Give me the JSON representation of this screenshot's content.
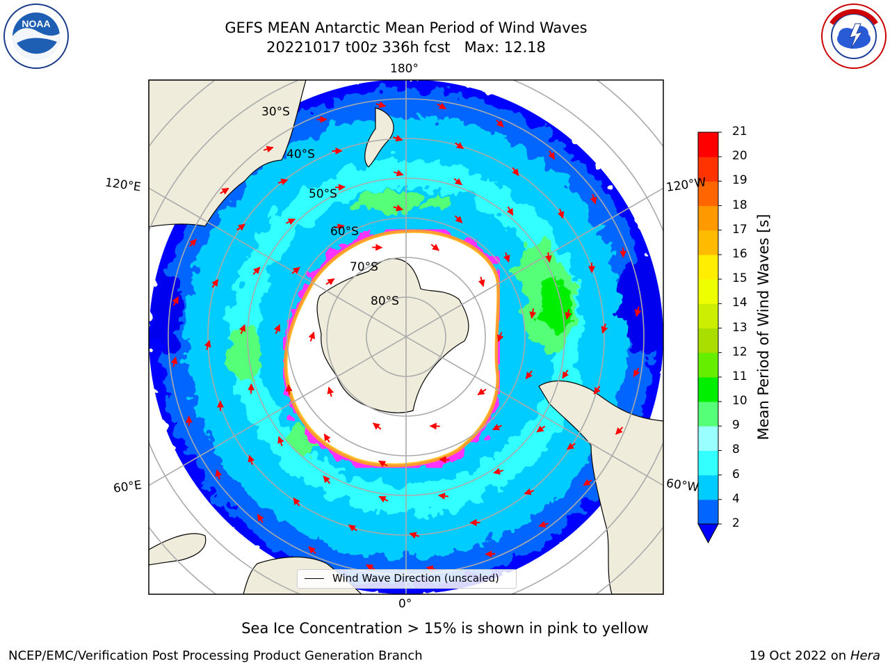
{
  "header": {
    "title_line1": "GEFS MEAN Antarctic Mean Period of Wind Waves",
    "title_line2": "20221017 t00z 336h fcst   Max: 12.18"
  },
  "map": {
    "projection": "south-polar-stereographic",
    "longitude_labels": {
      "top": "180°",
      "bottom": "0°",
      "upper_left": "120°E",
      "upper_right": "120°W",
      "lower_left": "60°E",
      "lower_right": "60°W"
    },
    "latitude_labels": [
      "30°S",
      "40°S",
      "50°S",
      "60°S",
      "70°S",
      "80°S"
    ],
    "legend_label": "Wind Wave Direction (unscaled)",
    "land_color": "#efecdc",
    "arrow_color": "#ff0000",
    "sea_ice_colors": [
      "#ff33ff",
      "#ff9933",
      "#ffcc33"
    ]
  },
  "colorbar": {
    "title": "Mean Period of Wind Waves [s]",
    "ticks": [
      "2",
      "4",
      "6",
      "8",
      "9",
      "10",
      "11",
      "12",
      "13",
      "14",
      "15",
      "16",
      "17",
      "18",
      "19",
      "20",
      "21"
    ],
    "colors": [
      "#0000ff",
      "#0066ff",
      "#00ccff",
      "#33ffff",
      "#99ffff",
      "#55ff77",
      "#00ee00",
      "#66ee00",
      "#aadd00",
      "#ccee00",
      "#eeff00",
      "#ffee00",
      "#ffbb00",
      "#ff9900",
      "#ff6600",
      "#ff3300",
      "#ff0000"
    ],
    "extend": "min"
  },
  "footer": {
    "caption": "Sea Ice Concentration > 15% is shown in pink to yellow",
    "left": "NCEP/EMC/Verification Post Processing Product Generation Branch",
    "right_date": "19 Oct 2022 on ",
    "right_host": "Hera"
  },
  "logos": {
    "left": "noaa-logo",
    "right": "nws-logo"
  }
}
